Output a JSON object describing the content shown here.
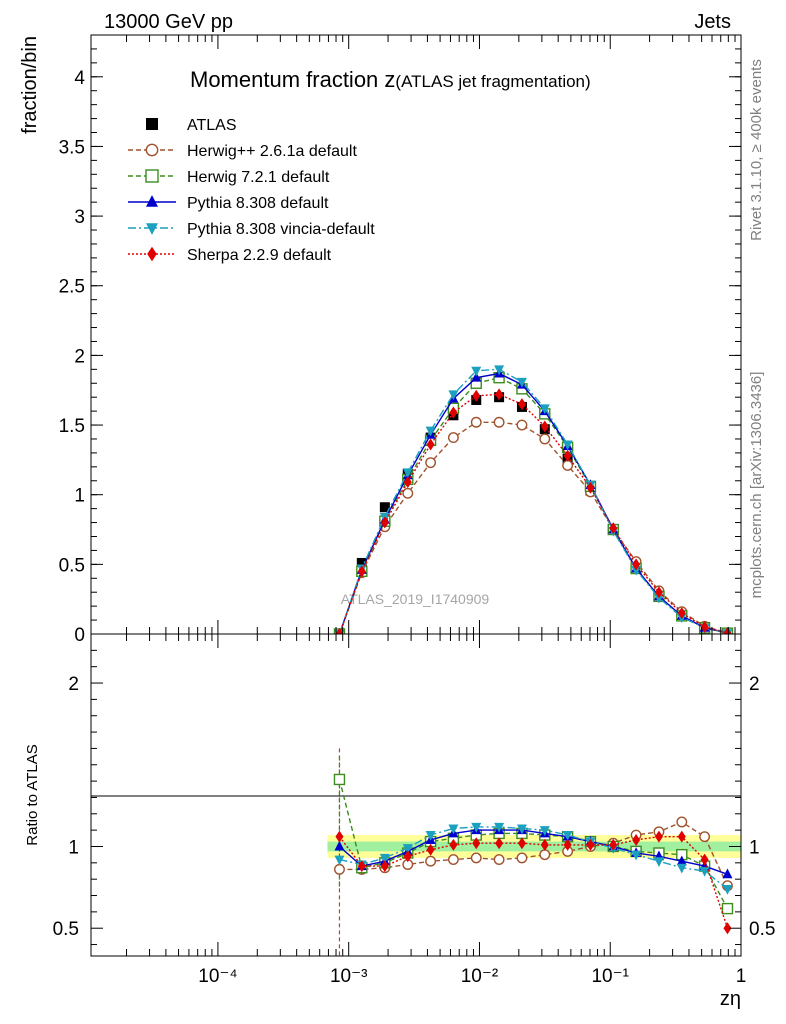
{
  "header": {
    "left": "13000 GeV pp",
    "right": "Jets",
    "title_main": "Momentum fraction z",
    "title_sub": "(ATLAS jet fragmentation)",
    "side_rivet": "Rivet 3.1.10, ≥ 400k events",
    "side_source": "mcplots.cern.ch [arXiv:1306.3436]",
    "watermark": "ATLAS_2019_I1740909"
  },
  "chart_data": {
    "type": "line",
    "xscale": "log",
    "xlim": [
      1.07e-05,
      1
    ],
    "xlabel": "zη",
    "x_ticks": [
      {
        "value": 0.0001,
        "label": "10⁻⁴"
      },
      {
        "value": 0.001,
        "label": "10⁻³"
      },
      {
        "value": 0.01,
        "label": "10⁻²"
      },
      {
        "value": 0.1,
        "label": "10⁻¹"
      },
      {
        "value": 1,
        "label": "1"
      }
    ],
    "main": {
      "ylabel": "fraction/bin",
      "ylim": [
        0,
        4.3
      ],
      "y_ticks": [
        "0",
        "0.5",
        "1",
        "1.5",
        "2",
        "2.5",
        "3",
        "3.5",
        "4"
      ]
    },
    "ratio": {
      "ylabel": "Ratio to ATLAS",
      "ylim": [
        0.33,
        2.3
      ],
      "y_ticks": [
        "0.5",
        "1",
        "2"
      ],
      "band_inner": [
        0.97,
        1.03
      ],
      "band_outer": [
        0.93,
        1.07
      ]
    },
    "x": [
      0.00085,
      0.00126,
      0.00189,
      0.00283,
      0.00423,
      0.00632,
      0.00945,
      0.01413,
      0.02113,
      0.03159,
      0.04722,
      0.0706,
      0.1055,
      0.1577,
      0.2358,
      0.3525,
      0.527,
      0.788
    ],
    "data": {
      "name": "ATLAS",
      "values": [
        0.0,
        0.51,
        0.91,
        1.15,
        1.41,
        1.57,
        1.68,
        1.7,
        1.63,
        1.47,
        1.26,
        1.03,
        0.75,
        0.48,
        0.28,
        0.14,
        0.05,
        0.01
      ]
    },
    "series": [
      {
        "name": "Herwig++ 2.6.1a default",
        "color": "#a0522d",
        "marker": "circle-open",
        "dash": "5,3",
        "values": [
          0.0,
          0.44,
          0.77,
          1.01,
          1.23,
          1.41,
          1.52,
          1.52,
          1.5,
          1.4,
          1.21,
          1.02,
          0.75,
          0.52,
          0.31,
          0.16,
          0.055,
          0.008
        ],
        "ratio": [
          0.86,
          0.86,
          0.87,
          0.89,
          0.91,
          0.92,
          0.93,
          0.92,
          0.93,
          0.95,
          0.97,
          1.0,
          1.02,
          1.07,
          1.09,
          1.15,
          1.06,
          0.76
        ]
      },
      {
        "name": "Herwig 7.2.1 default",
        "color": "#3c8c1e",
        "marker": "square-open",
        "dash": "5,3",
        "values": [
          0.0,
          0.45,
          0.81,
          1.11,
          1.39,
          1.62,
          1.8,
          1.84,
          1.76,
          1.58,
          1.34,
          1.06,
          0.75,
          0.47,
          0.27,
          0.13,
          0.043,
          0.006
        ],
        "ratio": [
          1.41,
          0.87,
          0.9,
          0.96,
          1.03,
          1.05,
          1.07,
          1.08,
          1.08,
          1.07,
          1.06,
          1.03,
          1.0,
          0.97,
          0.96,
          0.95,
          0.88,
          0.62
        ]
      },
      {
        "name": "Pythia 8.308 default",
        "color": "#0000cc",
        "marker": "triangle-up",
        "dash": "",
        "values": [
          0.0,
          0.46,
          0.82,
          1.14,
          1.43,
          1.69,
          1.84,
          1.87,
          1.79,
          1.6,
          1.35,
          1.07,
          0.75,
          0.47,
          0.27,
          0.13,
          0.045,
          0.008
        ],
        "ratio": [
          1.0,
          0.88,
          0.91,
          0.97,
          1.04,
          1.08,
          1.1,
          1.1,
          1.1,
          1.08,
          1.06,
          1.03,
          1.0,
          0.96,
          0.94,
          0.91,
          0.88,
          0.83
        ]
      },
      {
        "name": "Pythia 8.308 vincia-default",
        "color": "#1ca0c0",
        "marker": "triangle-down",
        "dash": "8,3,2,3",
        "values": [
          0.0,
          0.47,
          0.84,
          1.16,
          1.46,
          1.72,
          1.89,
          1.9,
          1.81,
          1.62,
          1.36,
          1.07,
          0.74,
          0.46,
          0.26,
          0.12,
          0.043,
          0.006
        ],
        "ratio": [
          0.92,
          0.89,
          0.93,
          0.99,
          1.07,
          1.11,
          1.12,
          1.12,
          1.11,
          1.1,
          1.07,
          1.03,
          0.99,
          0.95,
          0.91,
          0.87,
          0.85,
          0.74
        ]
      },
      {
        "name": "Sherpa 2.2.9 default",
        "color": "#e00000",
        "marker": "diamond",
        "dash": "2,2",
        "values": [
          0.0,
          0.45,
          0.8,
          1.09,
          1.36,
          1.59,
          1.71,
          1.72,
          1.65,
          1.49,
          1.28,
          1.05,
          0.76,
          0.5,
          0.3,
          0.15,
          0.05,
          0.006
        ],
        "ratio": [
          1.06,
          0.88,
          0.88,
          0.94,
          0.98,
          1.01,
          1.02,
          1.02,
          1.02,
          1.01,
          1.01,
          1.01,
          1.01,
          1.04,
          1.06,
          1.06,
          0.92,
          0.5
        ]
      }
    ]
  }
}
